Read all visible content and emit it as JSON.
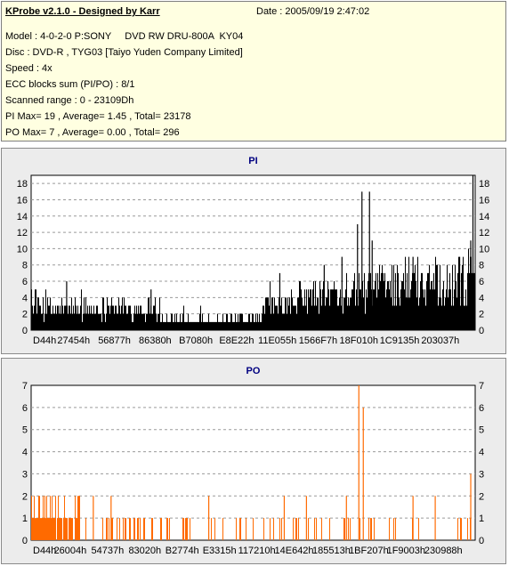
{
  "header": {
    "title": "KProbe v2.1.0 - Designed by Karr",
    "date": "Date : 2005/09/19 2:47:02",
    "model": "Model : 4-0-2-0 P:SONY     DVD RW DRU-800A  KY04",
    "disc": "Disc : DVD-R , TYG03 [Taiyo Yuden Company Limited]",
    "speed": "Speed : 4x",
    "ecc": "ECC blocks sum (PI/PO) : 8/1",
    "range": "Scanned range : 0 - 23109Dh",
    "pi_stats": "PI Max= 19 , Average= 1.45 , Total= 23178",
    "po_stats": "PO Max= 7 , Average= 0.00 , Total= 296"
  },
  "colors": {
    "pi": "#000000",
    "po": "#ff6a00",
    "title": "#000080",
    "grid": "#9a9a9a",
    "panel": "#ececec"
  },
  "chart_data": [
    {
      "type": "bar",
      "title": "PI",
      "ylim": [
        0,
        19
      ],
      "yticks": [
        0,
        2,
        4,
        6,
        8,
        10,
        12,
        14,
        16,
        18
      ],
      "xtick_labels": [
        "D44h",
        "27454h",
        "56877h",
        "86380h",
        "B7080h",
        "E8E22h",
        "11E055h",
        "1566F7h",
        "18F010h",
        "1C9135h",
        "203037h"
      ],
      "grid": true,
      "segments": [
        {
          "from": 0.0,
          "to": 0.29,
          "avg": 2.2,
          "max": 6
        },
        {
          "from": 0.29,
          "to": 0.52,
          "avg": 1.0,
          "max": 3
        },
        {
          "from": 0.52,
          "to": 0.6,
          "avg": 2.5,
          "max": 6
        },
        {
          "from": 0.6,
          "to": 0.7,
          "avg": 3.5,
          "max": 7
        },
        {
          "from": 0.7,
          "to": 0.78,
          "avg": 4.0,
          "max": 8
        },
        {
          "from": 0.78,
          "to": 0.98,
          "avg": 5.0,
          "max": 9
        },
        {
          "from": 0.98,
          "to": 1.0,
          "avg": 6.0,
          "max": 11
        }
      ],
      "peaks": [
        {
          "x": 0.08,
          "y": 6
        },
        {
          "x": 0.27,
          "y": 5
        },
        {
          "x": 0.56,
          "y": 7
        },
        {
          "x": 0.66,
          "y": 8
        },
        {
          "x": 0.7,
          "y": 9
        },
        {
          "x": 0.735,
          "y": 13
        },
        {
          "x": 0.745,
          "y": 17
        },
        {
          "x": 0.762,
          "y": 17
        },
        {
          "x": 0.768,
          "y": 11
        },
        {
          "x": 0.86,
          "y": 9
        },
        {
          "x": 0.965,
          "y": 9
        },
        {
          "x": 0.995,
          "y": 19
        },
        {
          "x": 0.99,
          "y": 11
        }
      ]
    },
    {
      "type": "bar",
      "title": "PO",
      "ylim": [
        0,
        7
      ],
      "yticks": [
        0,
        1,
        2,
        3,
        4,
        5,
        6,
        7
      ],
      "xtick_labels": [
        "D44h",
        "26004h",
        "54737h",
        "83020h",
        "B2774h",
        "E3315h",
        "117210h",
        "14E642h",
        "185513h",
        "1BF207h",
        "1F9003h",
        "230988h"
      ],
      "grid": true,
      "segments": [
        {
          "from": 0.0,
          "to": 0.11,
          "density": 0.8,
          "max": 2
        },
        {
          "from": 0.11,
          "to": 1.0,
          "density": 0.18,
          "max": 1
        }
      ],
      "peaks": [
        {
          "x": 0.14,
          "y": 2
        },
        {
          "x": 0.18,
          "y": 2
        },
        {
          "x": 0.4,
          "y": 2
        },
        {
          "x": 0.57,
          "y": 2
        },
        {
          "x": 0.62,
          "y": 2
        },
        {
          "x": 0.71,
          "y": 2
        },
        {
          "x": 0.738,
          "y": 7
        },
        {
          "x": 0.748,
          "y": 6
        },
        {
          "x": 0.86,
          "y": 2
        },
        {
          "x": 0.91,
          "y": 2
        },
        {
          "x": 0.99,
          "y": 3
        }
      ]
    }
  ]
}
